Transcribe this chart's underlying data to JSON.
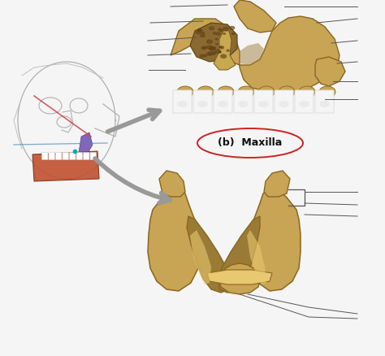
{
  "background_color": "#f5f5f5",
  "label_b_maxilla": "(b)  Maxilla",
  "label_color": "#cc2222",
  "arrow_color": "#999999",
  "line_color": "#333333",
  "bone_gold": "#c8a455",
  "bone_dark": "#8a6520",
  "bone_shadow": "#9a7b35",
  "bone_light": "#e8c870",
  "bone_brown": "#7a5525",
  "skull_color": "#bbbbbb",
  "jaw_color": "#c05030",
  "teeth_color": "#f0f0f0",
  "fig_w": 4.74,
  "fig_h": 4.38,
  "dpi": 100
}
